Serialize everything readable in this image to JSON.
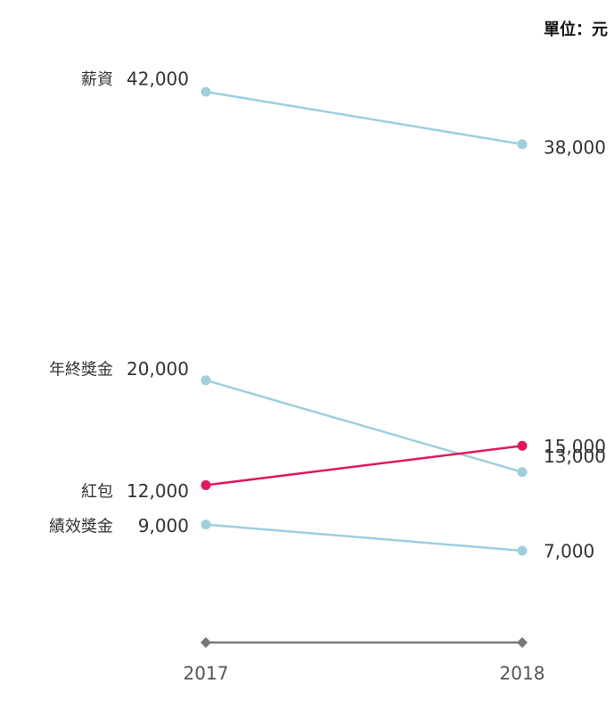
{
  "chart_data": {
    "type": "slope",
    "unit_label": "單位：元",
    "x": [
      "2017",
      "2018"
    ],
    "ylim": [
      0,
      42000
    ],
    "series": [
      {
        "name": "薪資",
        "color": "#9fcfdc",
        "values": [
          42000,
          38000
        ],
        "value_labels": [
          "42,000",
          "38,000"
        ]
      },
      {
        "name": "年終獎金",
        "color": "#9fcfdc",
        "values": [
          20000,
          13000
        ],
        "value_labels": [
          "20,000",
          "13,000"
        ]
      },
      {
        "name": "紅包",
        "color": "#e0185e",
        "values": [
          12000,
          15000
        ],
        "value_labels": [
          "12,000",
          "15,000"
        ]
      },
      {
        "name": "績效獎金",
        "color": "#9fcfdc",
        "values": [
          9000,
          7000
        ],
        "value_labels": [
          "9,000",
          "7,000"
        ]
      }
    ]
  }
}
